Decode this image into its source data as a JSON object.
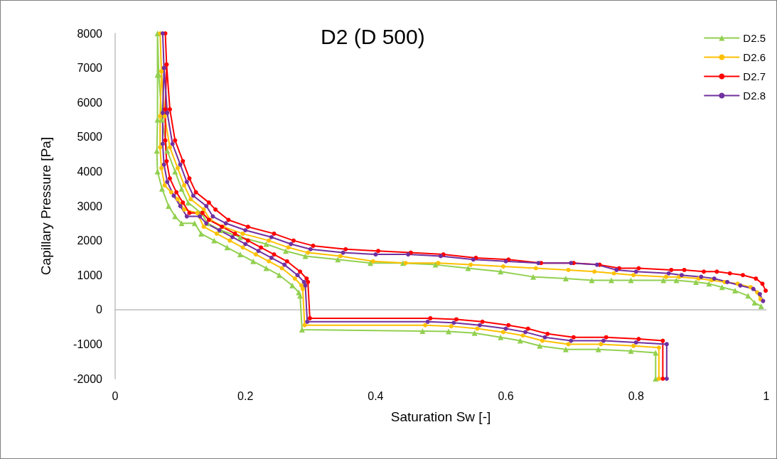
{
  "chart_data": {
    "type": "line",
    "title": "D2 (D 500)",
    "xlabel": "Saturation Sw [-]",
    "ylabel": "Capillary Pressure [Pa]",
    "xlim": [
      0,
      1
    ],
    "xticks": [
      0,
      0.2,
      0.4,
      0.6,
      0.8,
      1
    ],
    "ylim": [
      -2000,
      8000
    ],
    "yticks": [
      -2000,
      -1000,
      0,
      1000,
      2000,
      3000,
      4000,
      5000,
      6000,
      7000,
      8000
    ],
    "legend": "top right",
    "series": [
      {
        "name": "D2.5",
        "color": "#92d050",
        "marker": "triangle",
        "x": [
          0.992,
          0.982,
          0.972,
          0.952,
          0.932,
          0.912,
          0.892,
          0.862,
          0.842,
          0.792,
          0.762,
          0.732,
          0.692,
          0.642,
          0.592,
          0.542,
          0.492,
          0.442,
          0.392,
          0.342,
          0.292,
          0.262,
          0.232,
          0.192,
          0.162,
          0.142,
          0.132,
          0.112,
          0.102,
          0.092,
          0.08,
          0.072,
          0.067,
          0.065,
          0.065,
          0.065,
          0.064,
          0.065,
          0.072,
          0.082,
          0.092,
          0.102,
          0.122,
          0.132,
          0.152,
          0.172,
          0.192,
          0.212,
          0.232,
          0.252,
          0.272,
          0.282,
          0.284,
          0.287,
          0.472,
          0.512,
          0.552,
          0.592,
          0.622,
          0.652,
          0.692,
          0.742,
          0.792,
          0.83,
          0.83
        ],
        "values": [
          100,
          200,
          400,
          550,
          650,
          750,
          800,
          850,
          850,
          850,
          850,
          850,
          900,
          950,
          1100,
          1200,
          1300,
          1350,
          1350,
          1450,
          1550,
          1700,
          1900,
          2100,
          2300,
          2500,
          2800,
          3100,
          3500,
          4000,
          4600,
          5500,
          6800,
          8000,
          6800,
          5500,
          4600,
          4000,
          3500,
          3000,
          2700,
          2500,
          2500,
          2200,
          2000,
          1800,
          1600,
          1400,
          1200,
          1000,
          700,
          500,
          400,
          -580,
          -620,
          -630,
          -680,
          -800,
          -900,
          -1050,
          -1150,
          -1150,
          -1200,
          -1250,
          -2000
        ]
      },
      {
        "name": "D2.6",
        "color": "#ffc000",
        "marker": "circle",
        "x": [
          0.991,
          0.986,
          0.976,
          0.956,
          0.936,
          0.916,
          0.896,
          0.866,
          0.846,
          0.796,
          0.766,
          0.736,
          0.696,
          0.646,
          0.596,
          0.546,
          0.496,
          0.446,
          0.396,
          0.346,
          0.296,
          0.266,
          0.236,
          0.196,
          0.166,
          0.146,
          0.136,
          0.116,
          0.106,
          0.096,
          0.084,
          0.076,
          0.071,
          0.069,
          0.071,
          0.069,
          0.069,
          0.071,
          0.076,
          0.086,
          0.096,
          0.106,
          0.126,
          0.136,
          0.156,
          0.176,
          0.196,
          0.216,
          0.236,
          0.256,
          0.276,
          0.286,
          0.288,
          0.291,
          0.476,
          0.516,
          0.556,
          0.596,
          0.626,
          0.656,
          0.696,
          0.746,
          0.796,
          0.835,
          0.835
        ],
        "values": [
          300,
          500,
          650,
          750,
          800,
          850,
          900,
          950,
          950,
          1000,
          1050,
          1100,
          1150,
          1200,
          1250,
          1300,
          1350,
          1350,
          1400,
          1550,
          1650,
          1800,
          2000,
          2200,
          2400,
          2600,
          2900,
          3200,
          3600,
          4100,
          4700,
          5600,
          6900,
          8000,
          6900,
          5600,
          4700,
          4100,
          3600,
          3400,
          3200,
          2900,
          2800,
          2400,
          2200,
          2000,
          1800,
          1600,
          1400,
          1200,
          900,
          700,
          600,
          -450,
          -450,
          -480,
          -550,
          -650,
          -750,
          -900,
          -1000,
          -1000,
          -1050,
          -1100,
          -2000
        ]
      },
      {
        "name": "D2.7",
        "color": "#ff0000",
        "marker": "circle",
        "x": [
          0.999,
          0.994,
          0.984,
          0.964,
          0.944,
          0.924,
          0.904,
          0.874,
          0.854,
          0.804,
          0.774,
          0.744,
          0.704,
          0.654,
          0.604,
          0.554,
          0.504,
          0.454,
          0.404,
          0.354,
          0.304,
          0.274,
          0.244,
          0.204,
          0.174,
          0.154,
          0.144,
          0.124,
          0.114,
          0.104,
          0.092,
          0.084,
          0.079,
          0.077,
          0.079,
          0.077,
          0.077,
          0.079,
          0.084,
          0.094,
          0.104,
          0.114,
          0.134,
          0.144,
          0.164,
          0.184,
          0.204,
          0.224,
          0.244,
          0.264,
          0.284,
          0.294,
          0.296,
          0.299,
          0.484,
          0.524,
          0.564,
          0.604,
          0.634,
          0.664,
          0.704,
          0.754,
          0.804,
          0.841,
          0.841
        ],
        "values": [
          550,
          750,
          900,
          1000,
          1050,
          1100,
          1100,
          1150,
          1150,
          1200,
          1200,
          1300,
          1350,
          1350,
          1450,
          1500,
          1600,
          1650,
          1700,
          1750,
          1850,
          2000,
          2200,
          2400,
          2600,
          2900,
          3100,
          3400,
          3800,
          4300,
          4900,
          5800,
          7100,
          8000,
          7100,
          5800,
          4900,
          4300,
          3800,
          3400,
          3100,
          2800,
          2800,
          2600,
          2400,
          2200,
          2000,
          1800,
          1600,
          1400,
          1100,
          900,
          800,
          -250,
          -250,
          -280,
          -350,
          -450,
          -550,
          -700,
          -800,
          -800,
          -850,
          -900,
          -2000
        ]
      },
      {
        "name": "D2.8",
        "color": "#7030a0",
        "marker": "circle",
        "x": [
          0.995,
          0.99,
          0.98,
          0.96,
          0.94,
          0.92,
          0.9,
          0.87,
          0.85,
          0.8,
          0.77,
          0.74,
          0.7,
          0.65,
          0.6,
          0.55,
          0.5,
          0.45,
          0.4,
          0.35,
          0.3,
          0.27,
          0.24,
          0.2,
          0.17,
          0.15,
          0.14,
          0.12,
          0.11,
          0.1,
          0.088,
          0.08,
          0.075,
          0.073,
          0.075,
          0.073,
          0.073,
          0.075,
          0.08,
          0.09,
          0.1,
          0.11,
          0.13,
          0.14,
          0.16,
          0.18,
          0.2,
          0.22,
          0.24,
          0.26,
          0.28,
          0.29,
          0.292,
          0.295,
          0.48,
          0.52,
          0.56,
          0.6,
          0.63,
          0.66,
          0.7,
          0.75,
          0.8,
          0.847,
          0.847
        ],
        "values": [
          250,
          450,
          600,
          700,
          800,
          900,
          950,
          1000,
          1050,
          1100,
          1150,
          1300,
          1350,
          1350,
          1400,
          1450,
          1550,
          1600,
          1600,
          1650,
          1750,
          1900,
          2100,
          2300,
          2500,
          2700,
          3000,
          3300,
          3700,
          4200,
          4800,
          5700,
          7000,
          8000,
          7000,
          5700,
          4800,
          4200,
          3700,
          3300,
          3000,
          2700,
          2700,
          2500,
          2300,
          2100,
          1900,
          1700,
          1500,
          1300,
          1000,
          800,
          700,
          -350,
          -350,
          -380,
          -450,
          -550,
          -650,
          -800,
          -900,
          -900,
          -950,
          -1000,
          -2000
        ]
      }
    ]
  }
}
